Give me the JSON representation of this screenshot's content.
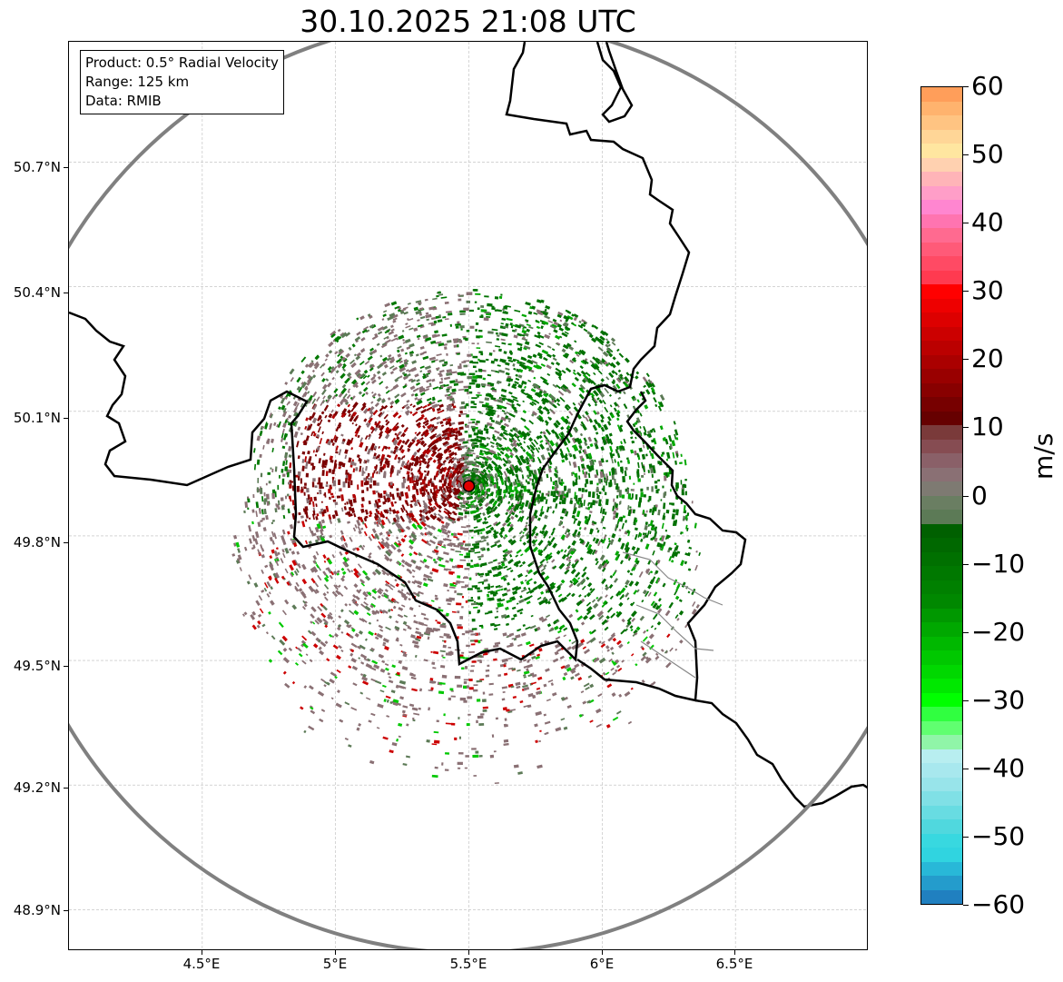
{
  "title": "30.10.2025 21:08 UTC",
  "info": {
    "product": "Product: 0.5° Radial Velocity",
    "range": "Range: 125 km",
    "source": "Data: RMIB"
  },
  "map": {
    "radar_site": {
      "lon": 5.5,
      "lat": 49.92
    },
    "range_ring_km": 125,
    "extent": {
      "lon_min": 4.0,
      "lon_max": 7.0,
      "lat_min": 48.8,
      "lat_max": 50.99
    }
  },
  "axes": {
    "lat_labels": [
      "50.7°N",
      "50.4°N",
      "50.1°N",
      "49.8°N",
      "49.5°N",
      "49.2°N",
      "48.9°N"
    ],
    "lon_labels": [
      "4.5°E",
      "5°E",
      "5.5°E",
      "6°E",
      "6.5°E"
    ]
  },
  "colorbar": {
    "unit": "m/s",
    "min": -60,
    "max": 60,
    "tick_labels": [
      "60",
      "50",
      "40",
      "30",
      "20",
      "10",
      "0",
      "−10",
      "−20",
      "−30",
      "−40",
      "−50",
      "−60"
    ],
    "colors_top_to_bottom": [
      "#ff9e5a",
      "#ffb36e",
      "#ffc482",
      "#ffd697",
      "#ffe6a0",
      "#ffd1b0",
      "#ffb4b8",
      "#ff9ec8",
      "#ff86d0",
      "#ff74b0",
      "#ff6a90",
      "#ff5a78",
      "#ff4a64",
      "#ff3a50",
      "#ff0000",
      "#ee0000",
      "#dd0000",
      "#cc0000",
      "#bb0000",
      "#aa0000",
      "#990000",
      "#880000",
      "#770000",
      "#660000",
      "#7a3a3a",
      "#864c52",
      "#8a6068",
      "#8a7074",
      "#7e7a72",
      "#6a7e62",
      "#5c7a56",
      "#006000",
      "#006800",
      "#007000",
      "#007800",
      "#008000",
      "#008800",
      "#009800",
      "#00a800",
      "#00b800",
      "#00c800",
      "#00d800",
      "#00e800",
      "#00ff00",
      "#30ff40",
      "#60ff70",
      "#90f5a8",
      "#b8eef0",
      "#a8e8ee",
      "#98e4ea",
      "#80e0e6",
      "#68dce2",
      "#50d8de",
      "#38d8e0",
      "#30d4e0",
      "#28b8d8",
      "#249ccc",
      "#2080c0"
    ]
  }
}
